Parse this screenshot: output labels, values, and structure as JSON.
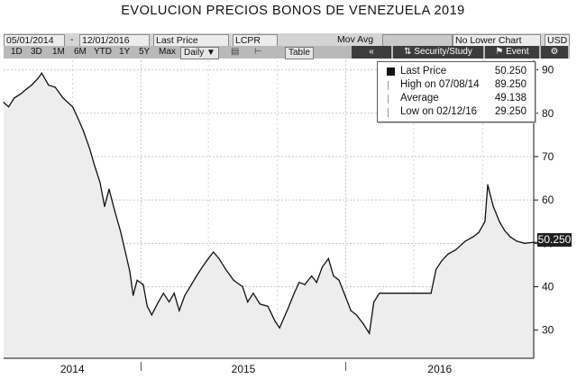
{
  "page_title": "EVOLUCION PRECIOS BONOS DE VENEZUELA 2019",
  "toolbar": {
    "start_date": "05/01/2014",
    "separator": "-",
    "end_date": "12/01/2016",
    "field_selector": "Last Price",
    "overlay": "LCPR",
    "mov_avg_label": "Mov Avg",
    "lower_chart": "No Lower Chart",
    "currency": "USD",
    "periods": [
      "1D",
      "3D",
      "1M",
      "6M",
      "YTD",
      "1Y",
      "5Y",
      "Max"
    ],
    "frequency": "Daily",
    "table_button": "Table",
    "collapse_glyph": "«",
    "security_study": "Security/Study",
    "event_label": "Event",
    "settings_glyph": "⚙"
  },
  "legend": {
    "last_price_label": "Last Price",
    "last_price_value": "50.250",
    "high_label": "High on 07/08/14",
    "high_value": "89.250",
    "average_label": "Average",
    "average_value": "49.138",
    "low_label": "Low on 02/12/16",
    "low_value": "29.250"
  },
  "last_price_flag": "50.250",
  "colors": {
    "area_fill": "#ededed",
    "line": "#111111",
    "toolbar_dark": "#3c3c3c"
  },
  "chart_data": {
    "type": "area",
    "title": "EVOLUCION PRECIOS BONOS DE VENEZUELA 2019",
    "xlabel": "",
    "ylabel": "",
    "x_labels": [
      "2014",
      "2015",
      "2016"
    ],
    "x_range": [
      "2014-05-01",
      "2016-12-01"
    ],
    "yticks": [
      30,
      40,
      50,
      60,
      70,
      80,
      90
    ],
    "ylim": [
      23.5,
      92.2
    ],
    "grid": true,
    "legend_position": "top-right",
    "series": [
      {
        "name": "Last Price",
        "points": [
          [
            "2014-05-01",
            82.5
          ],
          [
            "2014-05-10",
            81.5
          ],
          [
            "2014-05-20",
            83.5
          ],
          [
            "2014-06-01",
            84.5
          ],
          [
            "2014-06-10",
            85.5
          ],
          [
            "2014-06-20",
            86.5
          ],
          [
            "2014-07-01",
            88.0
          ],
          [
            "2014-07-08",
            89.25
          ],
          [
            "2014-07-20",
            86.5
          ],
          [
            "2014-08-01",
            86.0
          ],
          [
            "2014-08-15",
            83.5
          ],
          [
            "2014-09-01",
            81.5
          ],
          [
            "2014-09-10",
            79.0
          ],
          [
            "2014-09-20",
            76.0
          ],
          [
            "2014-10-01",
            72.0
          ],
          [
            "2014-10-10",
            68.0
          ],
          [
            "2014-10-20",
            64.0
          ],
          [
            "2014-10-28",
            58.5
          ],
          [
            "2014-11-05",
            62.5
          ],
          [
            "2014-11-15",
            57.5
          ],
          [
            "2014-11-25",
            53.0
          ],
          [
            "2014-12-05",
            47.5
          ],
          [
            "2014-12-12",
            43.5
          ],
          [
            "2014-12-18",
            38.0
          ],
          [
            "2014-12-25",
            41.5
          ],
          [
            "2015-01-05",
            40.5
          ],
          [
            "2015-01-12",
            35.5
          ],
          [
            "2015-01-20",
            33.5
          ],
          [
            "2015-02-01",
            36.5
          ],
          [
            "2015-02-10",
            38.5
          ],
          [
            "2015-02-20",
            36.5
          ],
          [
            "2015-03-01",
            38.5
          ],
          [
            "2015-03-10",
            34.5
          ],
          [
            "2015-03-20",
            38.0
          ],
          [
            "2015-04-01",
            40.5
          ],
          [
            "2015-04-10",
            42.5
          ],
          [
            "2015-04-20",
            44.5
          ],
          [
            "2015-05-01",
            46.5
          ],
          [
            "2015-05-10",
            48.0
          ],
          [
            "2015-05-20",
            46.5
          ],
          [
            "2015-06-01",
            44.0
          ],
          [
            "2015-06-15",
            41.5
          ],
          [
            "2015-07-01",
            40.0
          ],
          [
            "2015-07-10",
            36.5
          ],
          [
            "2015-07-20",
            38.5
          ],
          [
            "2015-08-01",
            36.0
          ],
          [
            "2015-08-15",
            35.5
          ],
          [
            "2015-08-28",
            32.0
          ],
          [
            "2015-09-05",
            30.5
          ],
          [
            "2015-09-20",
            35.0
          ],
          [
            "2015-10-01",
            38.5
          ],
          [
            "2015-10-10",
            41.0
          ],
          [
            "2015-10-20",
            40.5
          ],
          [
            "2015-11-01",
            42.5
          ],
          [
            "2015-11-10",
            41.0
          ],
          [
            "2015-11-20",
            44.5
          ],
          [
            "2015-12-01",
            46.5
          ],
          [
            "2015-12-10",
            42.5
          ],
          [
            "2015-12-20",
            41.5
          ],
          [
            "2016-01-01",
            37.5
          ],
          [
            "2016-01-10",
            34.5
          ],
          [
            "2016-01-20",
            33.5
          ],
          [
            "2016-02-01",
            31.5
          ],
          [
            "2016-02-12",
            29.25
          ],
          [
            "2016-02-20",
            36.5
          ],
          [
            "2016-03-01",
            38.5
          ],
          [
            "2016-03-10",
            38.5
          ],
          [
            "2016-04-01",
            38.5
          ],
          [
            "2016-05-01",
            38.5
          ],
          [
            "2016-06-01",
            38.5
          ],
          [
            "2016-06-10",
            44.0
          ],
          [
            "2016-06-20",
            46.0
          ],
          [
            "2016-07-01",
            47.5
          ],
          [
            "2016-07-15",
            48.5
          ],
          [
            "2016-08-01",
            50.5
          ],
          [
            "2016-08-15",
            51.5
          ],
          [
            "2016-08-25",
            52.5
          ],
          [
            "2016-09-05",
            55.0
          ],
          [
            "2016-09-10",
            63.5
          ],
          [
            "2016-09-20",
            58.5
          ],
          [
            "2016-10-01",
            55.0
          ],
          [
            "2016-10-10",
            53.0
          ],
          [
            "2016-10-20",
            51.5
          ],
          [
            "2016-11-01",
            50.5
          ],
          [
            "2016-11-15",
            50.0
          ],
          [
            "2016-12-01",
            50.25
          ]
        ]
      }
    ]
  }
}
